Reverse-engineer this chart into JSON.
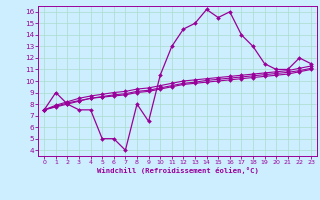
{
  "xlabel": "Windchill (Refroidissement éolien,°C)",
  "bg_color": "#cceeff",
  "line_color": "#990099",
  "grid_color": "#aaddcc",
  "xlim": [
    -0.5,
    23.5
  ],
  "ylim": [
    3.5,
    16.5
  ],
  "xticks": [
    0,
    1,
    2,
    3,
    4,
    5,
    6,
    7,
    8,
    9,
    10,
    11,
    12,
    13,
    14,
    15,
    16,
    17,
    18,
    19,
    20,
    21,
    22,
    23
  ],
  "yticks": [
    4,
    5,
    6,
    7,
    8,
    9,
    10,
    11,
    12,
    13,
    14,
    15,
    16
  ],
  "curve1_x": [
    0,
    1,
    2,
    3,
    4,
    5,
    6,
    7,
    8,
    9,
    10,
    11,
    12,
    13,
    14,
    15,
    16,
    17,
    18,
    19,
    20,
    21,
    22,
    23
  ],
  "curve1_y": [
    7.5,
    9.0,
    8.0,
    7.5,
    7.5,
    5.0,
    5.0,
    4.0,
    8.0,
    6.5,
    10.5,
    13.0,
    14.5,
    15.0,
    16.2,
    15.5,
    16.0,
    14.0,
    13.0,
    11.5,
    11.0,
    11.0,
    12.0,
    11.5
  ],
  "curve2_x": [
    0,
    1,
    2,
    3,
    4,
    5,
    6,
    7,
    8,
    9,
    10,
    11,
    12,
    13,
    14,
    15,
    16,
    17,
    18,
    19,
    20,
    21,
    22,
    23
  ],
  "curve2_y": [
    7.5,
    7.75,
    8.0,
    8.25,
    8.5,
    8.6,
    8.7,
    8.8,
    9.0,
    9.1,
    9.3,
    9.5,
    9.7,
    9.8,
    9.9,
    10.0,
    10.1,
    10.2,
    10.3,
    10.4,
    10.5,
    10.6,
    10.8,
    11.0
  ],
  "curve3_x": [
    0,
    1,
    2,
    3,
    4,
    5,
    6,
    7,
    8,
    9,
    10,
    11,
    12,
    13,
    14,
    15,
    16,
    17,
    18,
    19,
    20,
    21,
    22,
    23
  ],
  "curve3_y": [
    7.5,
    7.8,
    8.1,
    8.3,
    8.5,
    8.65,
    8.8,
    8.9,
    9.1,
    9.2,
    9.4,
    9.6,
    9.8,
    9.9,
    10.05,
    10.15,
    10.25,
    10.35,
    10.45,
    10.55,
    10.65,
    10.75,
    10.9,
    11.1
  ],
  "curve4_x": [
    0,
    1,
    2,
    3,
    4,
    5,
    6,
    7,
    8,
    9,
    10,
    11,
    12,
    13,
    14,
    15,
    16,
    17,
    18,
    19,
    20,
    21,
    22,
    23
  ],
  "curve4_y": [
    7.5,
    7.9,
    8.2,
    8.5,
    8.7,
    8.85,
    9.0,
    9.1,
    9.3,
    9.4,
    9.6,
    9.8,
    10.0,
    10.1,
    10.2,
    10.3,
    10.4,
    10.5,
    10.6,
    10.7,
    10.8,
    10.9,
    11.1,
    11.3
  ]
}
